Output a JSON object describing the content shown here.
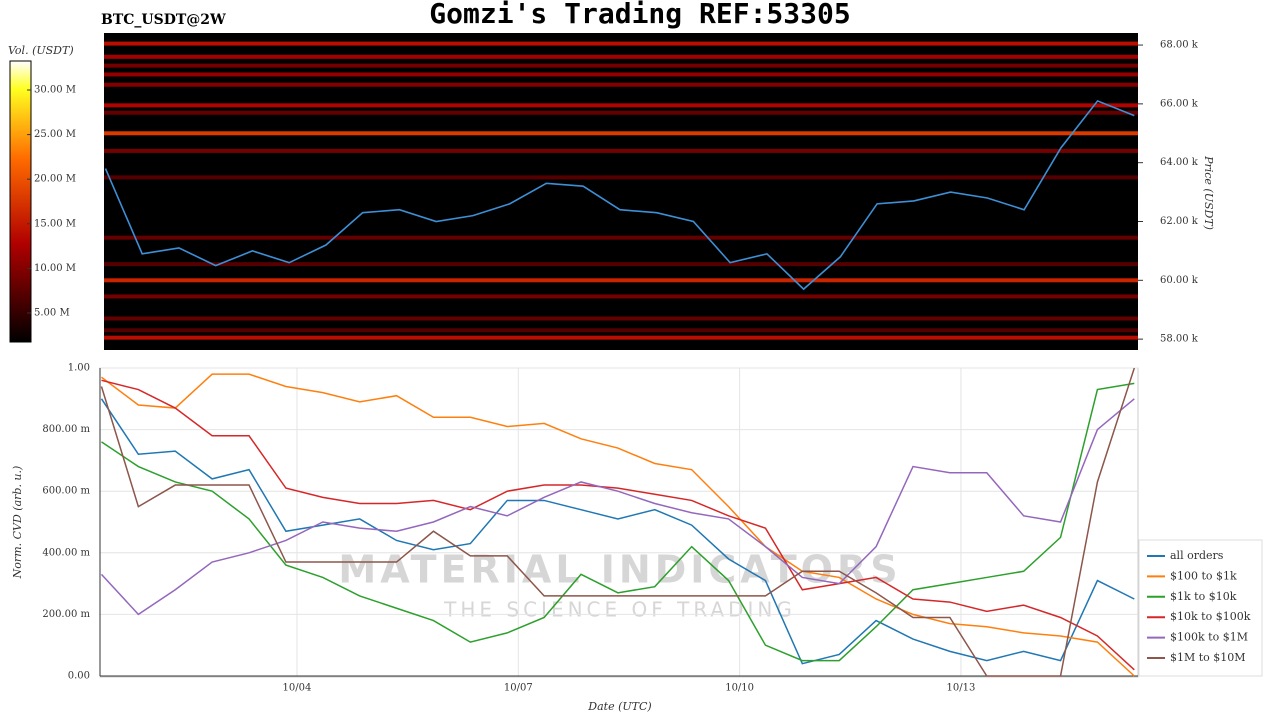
{
  "chart_data": [
    {
      "type": "heatmap",
      "title": "Gomzi's Trading REF:53305",
      "subtitle": "BTC_USDT@2W",
      "ylabel": "Price (USDT)",
      "colorbar_label": "Vol. (USDT)",
      "x": [
        1.35,
        1.85,
        2.35,
        2.85,
        3.35,
        3.85,
        4.35,
        4.85,
        5.35,
        5.85,
        6.35,
        6.85,
        7.35,
        7.85,
        8.35,
        8.85,
        9.35,
        9.85,
        10.35,
        10.85,
        11.35,
        11.85,
        12.35,
        12.85,
        13.35,
        13.85,
        14.35,
        14.85,
        15.35
      ],
      "values": [
        63800,
        60900,
        61100,
        60500,
        61000,
        60600,
        61200,
        62300,
        62400,
        62000,
        62200,
        62600,
        63300,
        63200,
        62400,
        62300,
        62000,
        60600,
        60900,
        59700,
        60800,
        62600,
        62700,
        63000,
        62800,
        62400,
        64500,
        66100,
        65600
      ],
      "color": "#3d8fd6",
      "xlim": [
        1.33,
        15.4
      ],
      "ylim": [
        57630,
        68410
      ],
      "yticks": [
        {
          "value": 58000,
          "label": "58.00 k"
        },
        {
          "value": 60000,
          "label": "60.00 k"
        },
        {
          "value": 62000,
          "label": "62.00 k"
        },
        {
          "value": 64000,
          "label": "64.00 k"
        },
        {
          "value": 66000,
          "label": "66.00 k"
        },
        {
          "value": 68000,
          "label": "68.00 k"
        }
      ],
      "levels": {
        "prices": [
          68050,
          67600,
          67300,
          67000,
          66650,
          65950,
          65700,
          65000,
          64400,
          63500,
          61450,
          60550,
          60000,
          59450,
          58700,
          58300,
          58050
        ],
        "volumes": [
          14000000,
          12000000,
          9000000,
          11000000,
          10000000,
          13000000,
          8000000,
          18000000,
          9000000,
          7000000,
          8000000,
          7000000,
          16000000,
          9000000,
          8000000,
          7000000,
          14000000
        ]
      },
      "clim": [
        1750000,
        33250000
      ],
      "cticks": [
        {
          "value": 5000000,
          "label": "5.00 M"
        },
        {
          "value": 10000000,
          "label": "10.00 M"
        },
        {
          "value": 15000000,
          "label": "15.00 M"
        },
        {
          "value": 20000000,
          "label": "20.00 M"
        },
        {
          "value": 25000000,
          "label": "25.00 M"
        },
        {
          "value": 30000000,
          "label": "30.00 M"
        }
      ]
    },
    {
      "type": "line",
      "xlabel": "Date (UTC)",
      "ylabel": "Norm. CVD (arb. u.)",
      "watermark": [
        "MATERIAL INDICATORS",
        "THE SCIENCE OF TRADING"
      ],
      "x": [
        1.35,
        1.85,
        2.35,
        2.85,
        3.35,
        3.85,
        4.35,
        4.85,
        5.35,
        5.85,
        6.35,
        6.85,
        7.35,
        7.85,
        8.35,
        8.85,
        9.35,
        9.85,
        10.35,
        10.85,
        11.35,
        11.85,
        12.35,
        12.85,
        13.35,
        13.85,
        14.35,
        14.85,
        15.35
      ],
      "xlim": [
        1.33,
        15.4
      ],
      "xticks": [
        {
          "value": 4,
          "label": "10/04"
        },
        {
          "value": 7,
          "label": "10/07"
        },
        {
          "value": 10,
          "label": "10/10"
        },
        {
          "value": 13,
          "label": "10/13"
        }
      ],
      "ylim": [
        0,
        1
      ],
      "yticks": [
        {
          "value": 0,
          "label": "0.00"
        },
        {
          "value": 0.2,
          "label": "200.00 m"
        },
        {
          "value": 0.4,
          "label": "400.00 m"
        },
        {
          "value": 0.6,
          "label": "600.00 m"
        },
        {
          "value": 0.8,
          "label": "800.00 m"
        },
        {
          "value": 1,
          "label": "1.00"
        }
      ],
      "grid": true,
      "legend": "right",
      "series": [
        {
          "name": "all orders",
          "color": "#1f77b4",
          "values": [
            0.9,
            0.72,
            0.73,
            0.64,
            0.67,
            0.47,
            0.49,
            0.51,
            0.44,
            0.41,
            0.43,
            0.57,
            0.57,
            0.54,
            0.51,
            0.54,
            0.49,
            0.38,
            0.31,
            0.04,
            0.07,
            0.18,
            0.12,
            0.08,
            0.05,
            0.08,
            0.05,
            0.31,
            0.25
          ]
        },
        {
          "name": "$100 to $1k",
          "color": "#ff7f0e",
          "values": [
            0.97,
            0.88,
            0.87,
            0.98,
            0.98,
            0.94,
            0.92,
            0.89,
            0.91,
            0.84,
            0.84,
            0.81,
            0.82,
            0.77,
            0.74,
            0.69,
            0.67,
            0.55,
            0.42,
            0.34,
            0.32,
            0.25,
            0.2,
            0.17,
            0.16,
            0.14,
            0.13,
            0.11,
            0.0
          ]
        },
        {
          "name": "$1k to $10k",
          "color": "#2ca02c",
          "values": [
            0.76,
            0.68,
            0.63,
            0.6,
            0.51,
            0.36,
            0.32,
            0.26,
            0.22,
            0.18,
            0.11,
            0.14,
            0.19,
            0.33,
            0.27,
            0.29,
            0.42,
            0.31,
            0.1,
            0.05,
            0.05,
            0.16,
            0.28,
            0.3,
            0.32,
            0.34,
            0.45,
            0.93,
            0.95
          ]
        },
        {
          "name": "$10k to $100k",
          "color": "#d62728",
          "values": [
            0.96,
            0.93,
            0.87,
            0.78,
            0.78,
            0.61,
            0.58,
            0.56,
            0.56,
            0.57,
            0.54,
            0.6,
            0.62,
            0.62,
            0.61,
            0.59,
            0.57,
            0.52,
            0.48,
            0.28,
            0.3,
            0.32,
            0.25,
            0.24,
            0.21,
            0.23,
            0.19,
            0.13,
            0.02
          ]
        },
        {
          "name": "$100k to $1M",
          "color": "#9467bd",
          "values": [
            0.33,
            0.2,
            0.28,
            0.37,
            0.4,
            0.44,
            0.5,
            0.48,
            0.47,
            0.5,
            0.55,
            0.52,
            0.58,
            0.63,
            0.6,
            0.56,
            0.53,
            0.51,
            0.42,
            0.32,
            0.3,
            0.42,
            0.68,
            0.66,
            0.66,
            0.52,
            0.5,
            0.8,
            0.9
          ]
        },
        {
          "name": "$1M to $10M",
          "color": "#8c564b",
          "values": [
            0.94,
            0.55,
            0.62,
            0.62,
            0.62,
            0.37,
            0.37,
            0.37,
            0.37,
            0.47,
            0.39,
            0.39,
            0.26,
            0.26,
            0.26,
            0.26,
            0.26,
            0.26,
            0.26,
            0.34,
            0.34,
            0.27,
            0.19,
            0.19,
            0.0,
            0.0,
            0.0,
            0.63,
            1.0
          ]
        }
      ]
    }
  ]
}
